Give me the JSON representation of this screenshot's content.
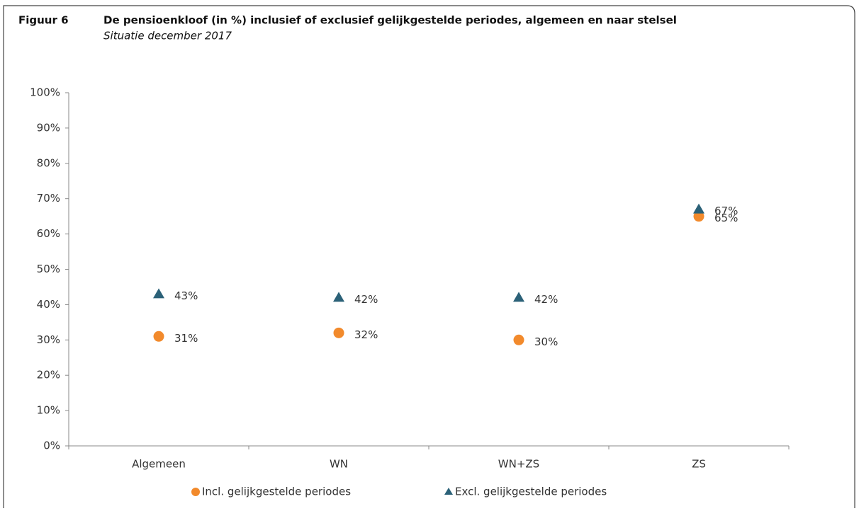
{
  "chart_data": {
    "type": "scatter",
    "figure_label": "Figuur 6",
    "title": "De pensioenkloof (in %) inclusief of exclusief gelijkgestelde periodes, algemeen en naar stelsel",
    "subtitle": "Situatie december 2017",
    "categories": [
      "Algemeen",
      "WN",
      "WN+ZS",
      "ZS"
    ],
    "series": [
      {
        "name": "Incl. gelijkgestelde periodes",
        "color": "#f28a2c",
        "marker": "circle",
        "values": [
          31,
          32,
          30,
          65
        ],
        "value_labels": [
          "31%",
          "32%",
          "30%",
          "65%"
        ]
      },
      {
        "name": "Excl. gelijkgestelde periodes",
        "color": "#2b6178",
        "marker": "triangle",
        "values": [
          43,
          42,
          42,
          67
        ],
        "value_labels": [
          "43%",
          "42%",
          "42%",
          "67%"
        ]
      }
    ],
    "ylim": [
      0,
      100
    ],
    "yticks": [
      {
        "value": 0,
        "label": "0%"
      },
      {
        "value": 10,
        "label": "10%"
      },
      {
        "value": 20,
        "label": "20%"
      },
      {
        "value": 30,
        "label": "30%"
      },
      {
        "value": 40,
        "label": "40%"
      },
      {
        "value": 50,
        "label": "50%"
      },
      {
        "value": 60,
        "label": "60%"
      },
      {
        "value": 70,
        "label": "70%"
      },
      {
        "value": 80,
        "label": "80%"
      },
      {
        "value": 90,
        "label": "90%"
      },
      {
        "value": 100,
        "label": "100%"
      }
    ],
    "legend": "bottom"
  }
}
